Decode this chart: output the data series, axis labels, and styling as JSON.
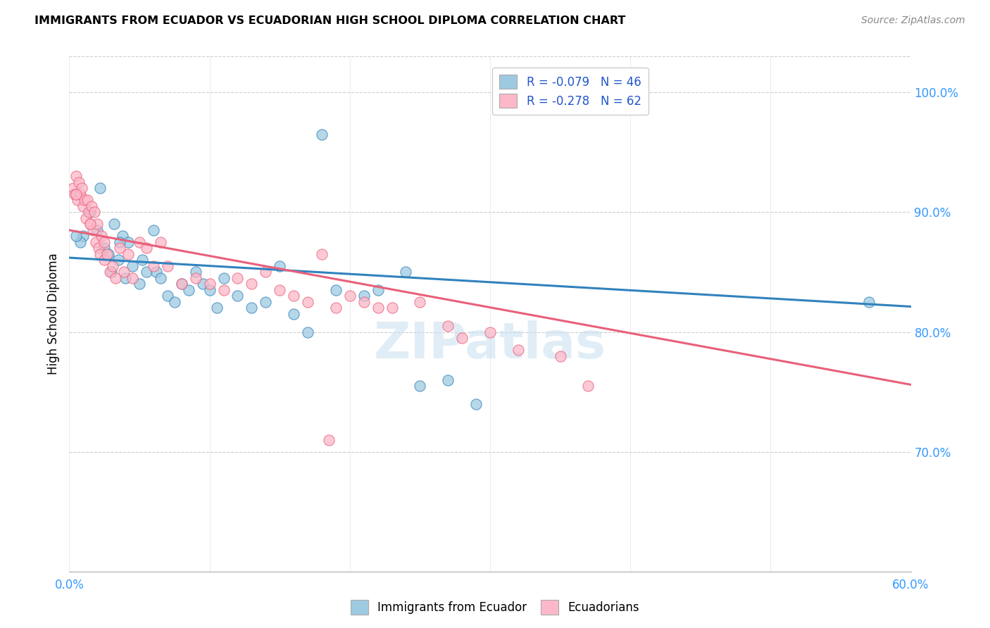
{
  "title": "IMMIGRANTS FROM ECUADOR VS ECUADORIAN HIGH SCHOOL DIPLOMA CORRELATION CHART",
  "source": "Source: ZipAtlas.com",
  "ylabel": "High School Diploma",
  "xmin": 0.0,
  "xmax": 60.0,
  "ymin": 60.0,
  "ymax": 103.0,
  "yticks": [
    70.0,
    80.0,
    90.0,
    100.0
  ],
  "xtick_positions": [
    0.0,
    10.0,
    20.0,
    30.0,
    40.0,
    50.0,
    60.0
  ],
  "xtick_labels_show": [
    "0.0%",
    "",
    "",
    "",
    "",
    "",
    "60.0%"
  ],
  "blue_R": -0.079,
  "blue_N": 46,
  "pink_R": -0.278,
  "pink_N": 62,
  "blue_color": "#9ecae1",
  "pink_color": "#fcb8c8",
  "blue_line_color": "#3182bd",
  "pink_line_color": "#e8607a",
  "legend_label_blue": "Immigrants from Ecuador",
  "legend_label_pink": "Ecuadorians",
  "watermark": "ZIPatlas",
  "blue_intercept": 86.2,
  "blue_slope": -0.068,
  "pink_intercept": 88.5,
  "pink_slope": -0.215,
  "blue_x": [
    1.5,
    2.0,
    2.2,
    2.5,
    2.8,
    3.0,
    3.2,
    3.5,
    3.8,
    4.0,
    4.2,
    4.5,
    5.0,
    5.2,
    5.5,
    6.0,
    6.2,
    6.5,
    7.0,
    7.5,
    8.0,
    8.5,
    9.0,
    9.5,
    10.0,
    10.5,
    11.0,
    12.0,
    13.0,
    14.0,
    15.0,
    16.0,
    17.0,
    18.0,
    19.0,
    21.0,
    22.0,
    24.0,
    25.0,
    27.0,
    29.0,
    3.6,
    1.0,
    0.8,
    57.0,
    0.5
  ],
  "blue_y": [
    90.0,
    88.5,
    92.0,
    87.0,
    86.5,
    85.0,
    89.0,
    86.0,
    88.0,
    84.5,
    87.5,
    85.5,
    84.0,
    86.0,
    85.0,
    88.5,
    85.0,
    84.5,
    83.0,
    82.5,
    84.0,
    83.5,
    85.0,
    84.0,
    83.5,
    82.0,
    84.5,
    83.0,
    82.0,
    82.5,
    85.5,
    81.5,
    80.0,
    96.5,
    83.5,
    83.0,
    83.5,
    85.0,
    75.5,
    76.0,
    74.0,
    87.5,
    88.0,
    87.5,
    82.5,
    88.0
  ],
  "pink_x": [
    0.3,
    0.4,
    0.5,
    0.6,
    0.7,
    0.8,
    0.9,
    1.0,
    1.1,
    1.2,
    1.3,
    1.4,
    1.5,
    1.6,
    1.7,
    1.8,
    1.9,
    2.0,
    2.1,
    2.2,
    2.3,
    2.5,
    2.7,
    2.9,
    3.1,
    3.3,
    3.6,
    3.9,
    4.2,
    4.5,
    5.0,
    5.5,
    6.0,
    6.5,
    7.0,
    8.0,
    9.0,
    10.0,
    11.0,
    12.0,
    13.0,
    14.0,
    15.0,
    16.0,
    17.0,
    18.0,
    19.0,
    20.0,
    21.0,
    22.0,
    23.0,
    25.0,
    27.0,
    28.0,
    30.0,
    32.0,
    35.0,
    0.5,
    1.5,
    2.5,
    18.5,
    37.0
  ],
  "pink_y": [
    92.0,
    91.5,
    93.0,
    91.0,
    92.5,
    91.5,
    92.0,
    90.5,
    91.0,
    89.5,
    91.0,
    90.0,
    89.0,
    90.5,
    88.5,
    90.0,
    87.5,
    89.0,
    87.0,
    86.5,
    88.0,
    86.0,
    86.5,
    85.0,
    85.5,
    84.5,
    87.0,
    85.0,
    86.5,
    84.5,
    87.5,
    87.0,
    85.5,
    87.5,
    85.5,
    84.0,
    84.5,
    84.0,
    83.5,
    84.5,
    84.0,
    85.0,
    83.5,
    83.0,
    82.5,
    86.5,
    82.0,
    83.0,
    82.5,
    82.0,
    82.0,
    82.5,
    80.5,
    79.5,
    80.0,
    78.5,
    78.0,
    91.5,
    89.0,
    87.5,
    71.0,
    75.5
  ]
}
